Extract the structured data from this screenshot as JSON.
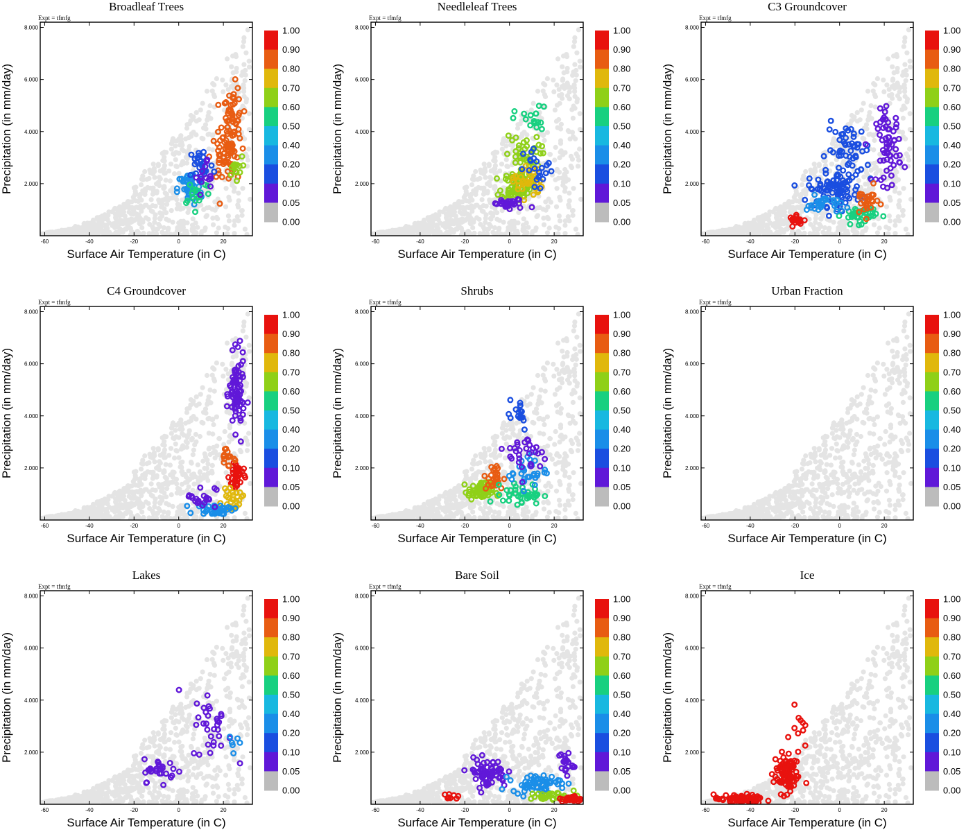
{
  "figure": {
    "expt_label": "Expt = tfmfg",
    "xlabel": "Surface Air Temperature (in C)",
    "ylabel": "Precipitation (in mm/day)",
    "xlim": [
      -62,
      33
    ],
    "ylim": [
      0,
      8.2
    ],
    "x_ticks": [
      -60,
      -40,
      -20,
      0,
      20
    ],
    "y_ticks": [
      2,
      4,
      6,
      8
    ],
    "y_tick_labels": [
      "2.000",
      "4.000",
      "6.000",
      "8.000"
    ],
    "colorbar": {
      "labels": [
        "1.00",
        "0.90",
        "0.80",
        "0.70",
        "0.60",
        "0.50",
        "0.40",
        "0.20",
        "0.10",
        "0.05",
        "0.00"
      ],
      "colors": [
        "#e8120e",
        "#e85c12",
        "#e0b80c",
        "#8fd018",
        "#18d080",
        "#18b8e0",
        "#1a8ee8",
        "#1a4ee0",
        "#6018d8",
        "#bcbcbc"
      ]
    },
    "background_color": "#e4e4e4",
    "zero_color": "#b4b4b4"
  },
  "chart_data": [
    {
      "type": "scatter",
      "title": "Broadleaf Trees",
      "xlabel": "Surface Air Temperature (in C)",
      "ylabel": "Precipitation (in mm/day)",
      "xlim": [
        -62,
        33
      ],
      "ylim": [
        0,
        8.2
      ],
      "clusters": [
        {
          "center": [
            24,
            4.3
          ],
          "spread": [
            4,
            1.3
          ],
          "n": 70,
          "color_index": 1
        },
        {
          "center": [
            20,
            3.0
          ],
          "spread": [
            5,
            0.8
          ],
          "n": 40,
          "color_index": 1
        },
        {
          "center": [
            25,
            2.6
          ],
          "spread": [
            3,
            0.4
          ],
          "n": 14,
          "color_index": 3
        },
        {
          "center": [
            5,
            1.8
          ],
          "spread": [
            5,
            0.6
          ],
          "n": 45,
          "color_index": 6
        },
        {
          "center": [
            10,
            2.7
          ],
          "spread": [
            5,
            0.7
          ],
          "n": 28,
          "color_index": 7
        },
        {
          "center": [
            8,
            1.7
          ],
          "spread": [
            6,
            0.5
          ],
          "n": 18,
          "color_index": 4
        },
        {
          "center": [
            13,
            2.2
          ],
          "spread": [
            5,
            0.7
          ],
          "n": 14,
          "color_index": 8
        },
        {
          "center": [
            8,
            4.4
          ],
          "spread": [
            3,
            0.4
          ],
          "n": 8,
          "color_index": 10
        }
      ]
    },
    {
      "type": "scatter",
      "title": "Needleleaf Trees",
      "xlabel": "Surface Air Temperature (in C)",
      "ylabel": "Precipitation (in mm/day)",
      "xlim": [
        -62,
        33
      ],
      "ylim": [
        0,
        8.2
      ],
      "clusters": [
        {
          "center": [
            3,
            1.9
          ],
          "spread": [
            6,
            0.5
          ],
          "n": 70,
          "color_index": 3
        },
        {
          "center": [
            6,
            3.0
          ],
          "spread": [
            7,
            0.8
          ],
          "n": 45,
          "color_index": 3
        },
        {
          "center": [
            8,
            2.1
          ],
          "spread": [
            6,
            0.6
          ],
          "n": 35,
          "color_index": 2
        },
        {
          "center": [
            10,
            4.4
          ],
          "spread": [
            7,
            0.5
          ],
          "n": 18,
          "color_index": 4
        },
        {
          "center": [
            13,
            2.5
          ],
          "spread": [
            6,
            0.8
          ],
          "n": 22,
          "color_index": 7
        },
        {
          "center": [
            0,
            1.2
          ],
          "spread": [
            8,
            0.2
          ],
          "n": 28,
          "color_index": 8
        },
        {
          "center": [
            -4,
            1.4
          ],
          "spread": [
            4,
            0.3
          ],
          "n": 14,
          "color_index": 10
        }
      ]
    },
    {
      "type": "scatter",
      "title": "C3 Groundcover",
      "xlabel": "Surface Air Temperature (in C)",
      "ylabel": "Precipitation (in mm/day)",
      "xlim": [
        -62,
        33
      ],
      "ylim": [
        0,
        8.2
      ],
      "clusters": [
        {
          "center": [
            -2,
            1.8
          ],
          "spread": [
            11,
            0.6
          ],
          "n": 90,
          "color_index": 7
        },
        {
          "center": [
            4,
            3.3
          ],
          "spread": [
            9,
            0.9
          ],
          "n": 50,
          "color_index": 7
        },
        {
          "center": [
            22,
            3.4
          ],
          "spread": [
            5,
            1.3
          ],
          "n": 60,
          "color_index": 8
        },
        {
          "center": [
            -19,
            0.6
          ],
          "spread": [
            3,
            0.15
          ],
          "n": 20,
          "color_index": 0
        },
        {
          "center": [
            9,
            0.8
          ],
          "spread": [
            7,
            0.3
          ],
          "n": 40,
          "color_index": 4
        },
        {
          "center": [
            -7,
            1.2
          ],
          "spread": [
            7,
            0.3
          ],
          "n": 30,
          "color_index": 6
        },
        {
          "center": [
            12,
            1.3
          ],
          "spread": [
            5,
            0.5
          ],
          "n": 25,
          "color_index": 1
        },
        {
          "center": [
            26,
            5.3
          ],
          "spread": [
            3,
            1.0
          ],
          "n": 20,
          "color_index": 10
        }
      ]
    },
    {
      "type": "scatter",
      "title": "C4 Groundcover",
      "xlabel": "Surface Air Temperature (in C)",
      "ylabel": "Precipitation (in mm/day)",
      "xlim": [
        -62,
        33
      ],
      "ylim": [
        0,
        8.2
      ],
      "clusters": [
        {
          "center": [
            26,
            4.8
          ],
          "spread": [
            3,
            1.3
          ],
          "n": 80,
          "color_index": 8
        },
        {
          "center": [
            26,
            1.7
          ],
          "spread": [
            3,
            0.6
          ],
          "n": 35,
          "color_index": 0
        },
        {
          "center": [
            24,
            0.8
          ],
          "spread": [
            4,
            0.3
          ],
          "n": 25,
          "color_index": 2
        },
        {
          "center": [
            17,
            0.4
          ],
          "spread": [
            8,
            0.2
          ],
          "n": 40,
          "color_index": 6
        },
        {
          "center": [
            10,
            0.9
          ],
          "spread": [
            6,
            0.4
          ],
          "n": 20,
          "color_index": 8
        },
        {
          "center": [
            22,
            2.4
          ],
          "spread": [
            4,
            0.4
          ],
          "n": 15,
          "color_index": 1
        },
        {
          "center": [
            13,
            2.3
          ],
          "spread": [
            8,
            0.6
          ],
          "n": 40,
          "color_index": 10
        }
      ]
    },
    {
      "type": "scatter",
      "title": "Shrubs",
      "xlabel": "Surface Air Temperature (in C)",
      "ylabel": "Precipitation (in mm/day)",
      "xlim": [
        -62,
        33
      ],
      "ylim": [
        0,
        8.2
      ],
      "clusters": [
        {
          "center": [
            -13,
            1.1
          ],
          "spread": [
            5,
            0.3
          ],
          "n": 70,
          "color_index": 3
        },
        {
          "center": [
            -7,
            1.6
          ],
          "spread": [
            4,
            0.5
          ],
          "n": 28,
          "color_index": 1
        },
        {
          "center": [
            6,
            1.0
          ],
          "spread": [
            8,
            0.35
          ],
          "n": 40,
          "color_index": 4
        },
        {
          "center": [
            8,
            1.9
          ],
          "spread": [
            8,
            0.6
          ],
          "n": 30,
          "color_index": 6
        },
        {
          "center": [
            8,
            2.5
          ],
          "spread": [
            8,
            0.8
          ],
          "n": 30,
          "color_index": 8
        },
        {
          "center": [
            3,
            4.2
          ],
          "spread": [
            6,
            0.7
          ],
          "n": 15,
          "color_index": 7
        },
        {
          "center": [
            26,
            5.4
          ],
          "spread": [
            3,
            1.2
          ],
          "n": 30,
          "color_index": 10
        }
      ]
    },
    {
      "type": "scatter",
      "title": "Urban Fraction",
      "xlabel": "Surface Air Temperature (in C)",
      "ylabel": "Precipitation (in mm/day)",
      "xlim": [
        -62,
        33
      ],
      "ylim": [
        0,
        8.2
      ],
      "clusters": []
    },
    {
      "type": "scatter",
      "title": "Lakes",
      "xlabel": "Surface Air Temperature (in C)",
      "ylabel": "Precipitation (in mm/day)",
      "xlim": [
        -62,
        33
      ],
      "ylim": [
        0,
        8.2
      ],
      "clusters": [
        {
          "center": [
            -8,
            1.3
          ],
          "spread": [
            7,
            0.4
          ],
          "n": 28,
          "color_index": 8
        },
        {
          "center": [
            15,
            3.0
          ],
          "spread": [
            8,
            1.2
          ],
          "n": 32,
          "color_index": 8
        },
        {
          "center": [
            24,
            2.5
          ],
          "spread": [
            4,
            0.6
          ],
          "n": 6,
          "color_index": 6
        },
        {
          "center": [
            12,
            2.3
          ],
          "spread": [
            10,
            1.2
          ],
          "n": 45,
          "color_index": 10
        }
      ]
    },
    {
      "type": "scatter",
      "title": "Bare Soil",
      "xlabel": "Surface Air Temperature (in C)",
      "ylabel": "Precipitation (in mm/day)",
      "xlim": [
        -62,
        33
      ],
      "ylim": [
        0,
        8.2
      ],
      "clusters": [
        {
          "center": [
            -10,
            1.2
          ],
          "spread": [
            8,
            0.5
          ],
          "n": 70,
          "color_index": 8
        },
        {
          "center": [
            12,
            0.8
          ],
          "spread": [
            10,
            0.3
          ],
          "n": 60,
          "color_index": 6
        },
        {
          "center": [
            20,
            0.3
          ],
          "spread": [
            10,
            0.15
          ],
          "n": 35,
          "color_index": 3
        },
        {
          "center": [
            28,
            0.2
          ],
          "spread": [
            4,
            0.1
          ],
          "n": 30,
          "color_index": 0
        },
        {
          "center": [
            25,
            1.6
          ],
          "spread": [
            3,
            0.5
          ],
          "n": 20,
          "color_index": 8
        },
        {
          "center": [
            -26,
            0.3
          ],
          "spread": [
            3,
            0.1
          ],
          "n": 8,
          "color_index": 0
        },
        {
          "center": [
            10,
            2.8
          ],
          "spread": [
            12,
            1.4
          ],
          "n": 110,
          "color_index": 10
        }
      ]
    },
    {
      "type": "scatter",
      "title": "Ice",
      "xlabel": "Surface Air Temperature (in C)",
      "ylabel": "Precipitation (in mm/day)",
      "xlim": [
        -62,
        33
      ],
      "ylim": [
        0,
        8.2
      ],
      "clusters": [
        {
          "center": [
            -24,
            1.2
          ],
          "spread": [
            5,
            0.7
          ],
          "n": 90,
          "color_index": 0
        },
        {
          "center": [
            -45,
            0.2
          ],
          "spread": [
            10,
            0.15
          ],
          "n": 60,
          "color_index": 0
        },
        {
          "center": [
            -18,
            3.0
          ],
          "spread": [
            2,
            0.8
          ],
          "n": 10,
          "color_index": 0
        }
      ]
    }
  ]
}
